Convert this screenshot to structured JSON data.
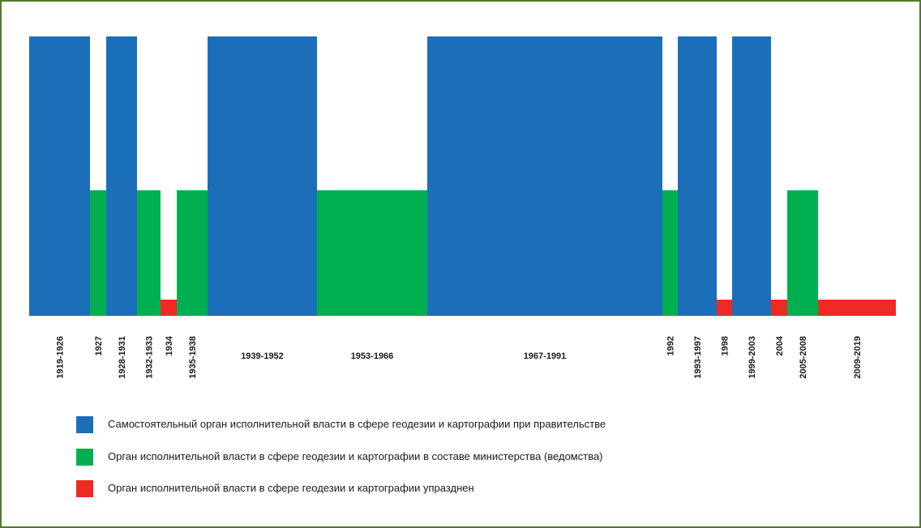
{
  "chart_data": {
    "type": "bar",
    "categories": [
      "1919-1926",
      "1927",
      "1928-1931",
      "1932-1933",
      "1934",
      "1935-1938",
      "1939-1952",
      "1953-1966",
      "1967-1991",
      "1992",
      "1993-1997",
      "1998",
      "1999-2003",
      "2004",
      "2005-2008",
      "2009-2019"
    ],
    "level_names": [
      "Самостоятельный орган исполнительной власти в сфере геодезии и картографии при правительстве",
      "Орган исполнительной власти в сфере геодезии и картографии в составе министерства (ведомства)",
      "Орган исполнительной власти в сфере геодезии и картографии упразднен"
    ],
    "values": [
      3,
      2,
      3,
      2,
      1,
      2,
      3,
      2,
      3,
      2,
      3,
      1,
      3,
      1,
      2,
      1
    ],
    "span_years": [
      8,
      1,
      4,
      2,
      1,
      4,
      14,
      14,
      25,
      1,
      5,
      1,
      5,
      1,
      4,
      11
    ],
    "colors": {
      "3": "#1b6fb8",
      "2": "#00b050",
      "1": "#ee2a24"
    },
    "ylim": [
      0,
      3
    ],
    "grid": false,
    "legend_position": "bottom-left"
  },
  "legend": [
    {
      "label": "Самостоятельный орган исполнительной власти в сфере геодезии и картографии при правительстве",
      "color": "#1b6fb8"
    },
    {
      "label": "Орган исполнительной власти в сфере геодезии и картографии в составе министерства (ведомства)",
      "color": "#00b050"
    },
    {
      "label": "Орган исполнительной власти в сфере геодезии и картографии упразднен",
      "color": "#ee2a24"
    }
  ]
}
